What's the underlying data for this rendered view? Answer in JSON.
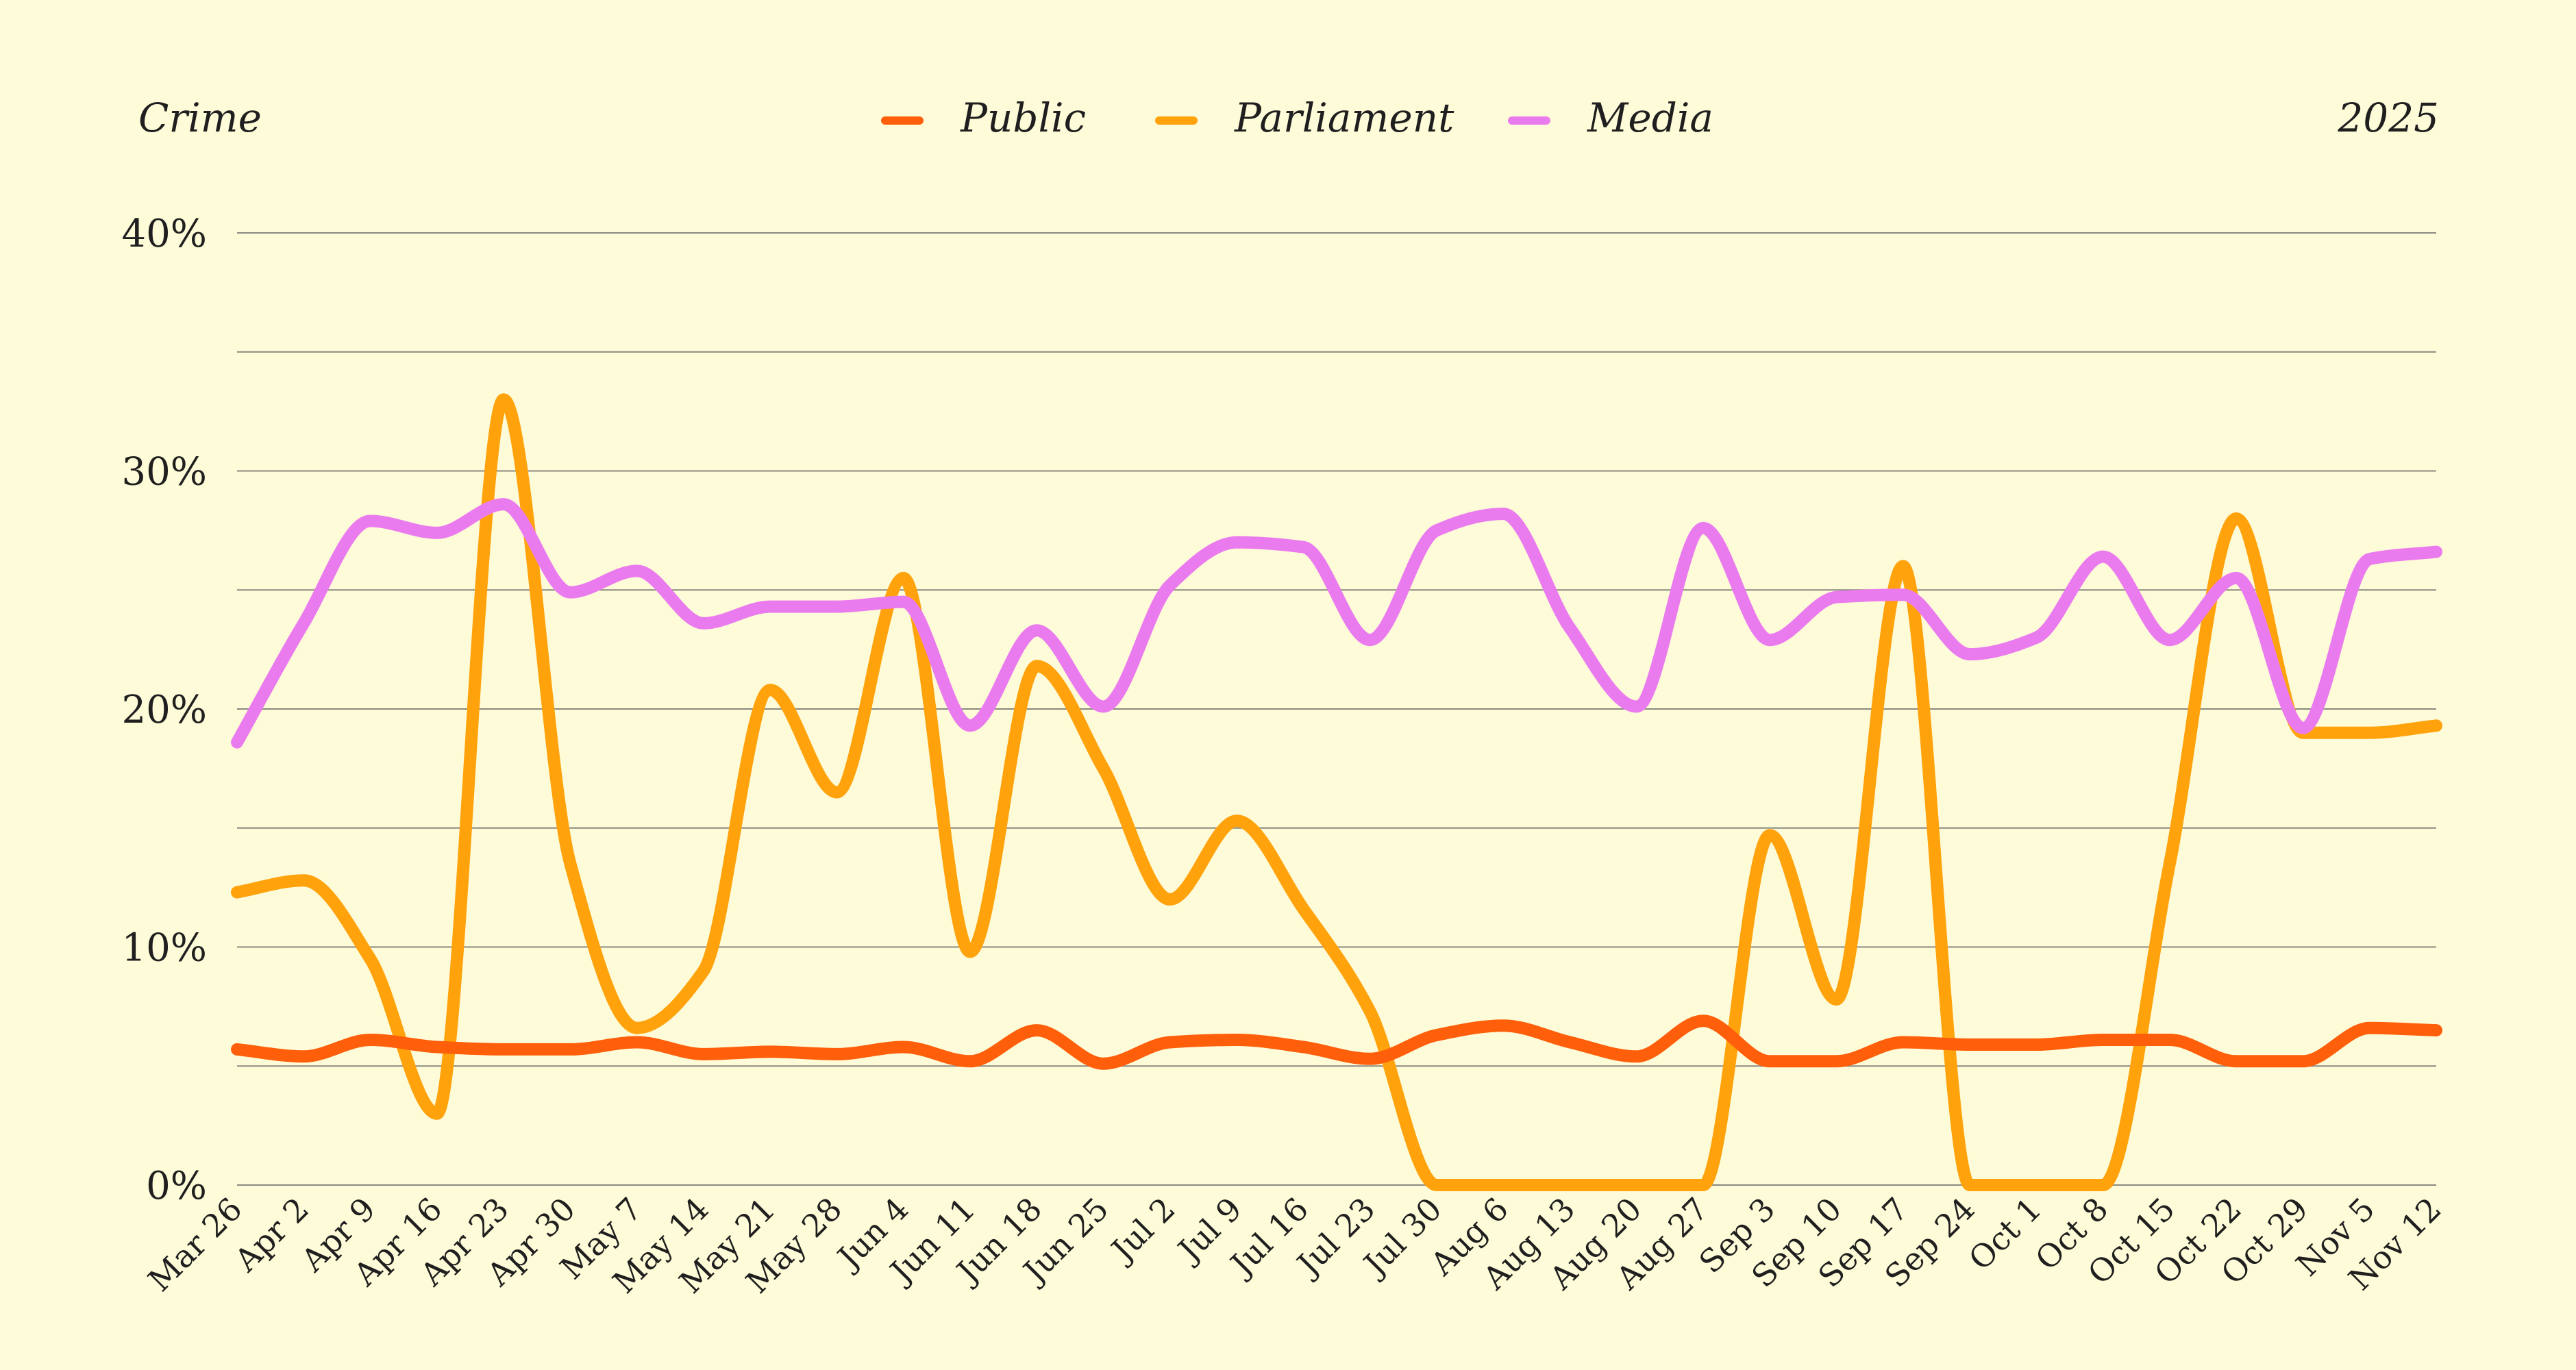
{
  "chart_data": {
    "type": "line",
    "title": "Crime",
    "year_label": "2025",
    "xlabel": "",
    "ylabel": "",
    "ylim": [
      0,
      40
    ],
    "yticks": [
      0,
      10,
      20,
      30,
      40
    ],
    "ytick_labels": [
      "0%",
      "10%",
      "20%",
      "30%",
      "40%"
    ],
    "grid": true,
    "legend_position": "top-center",
    "categories": [
      "Mar 26",
      "Apr 2",
      "Apr 9",
      "Apr 16",
      "Apr 23",
      "Apr 30",
      "May 7",
      "May 14",
      "May 21",
      "May 28",
      "Jun 4",
      "Jun 11",
      "Jun 18",
      "Jun 25",
      "Jul 2",
      "Jul 9",
      "Jul 16",
      "Jul 23",
      "Jul 30",
      "Aug 6",
      "Aug 13",
      "Aug 20",
      "Aug 27",
      "Sep 3",
      "Sep 10",
      "Sep 17",
      "Sep 24",
      "Oct 1",
      "Oct 8",
      "Oct 15",
      "Oct 22",
      "Oct 29",
      "Nov 5",
      "Nov 12"
    ],
    "series": [
      {
        "name": "Public",
        "color": "#ff5f0a",
        "values": [
          5.7,
          5.4,
          6.1,
          5.8,
          5.7,
          5.7,
          6.0,
          5.5,
          5.6,
          5.5,
          5.8,
          5.2,
          6.5,
          5.1,
          6.0,
          6.1,
          5.8,
          5.3,
          6.3,
          6.7,
          6.0,
          5.4,
          6.9,
          5.2,
          5.2,
          6.0,
          5.9,
          5.9,
          6.1,
          6.1,
          5.2,
          5.2,
          6.6,
          6.5
        ]
      },
      {
        "name": "Parliament",
        "color": "#ffa20c",
        "values": [
          12.3,
          12.8,
          9.5,
          3.0,
          33.0,
          13.5,
          6.6,
          9.0,
          20.8,
          16.5,
          25.5,
          9.8,
          21.8,
          17.5,
          12.0,
          15.3,
          11.6,
          7.3,
          0.0,
          0.0,
          0.0,
          0.0,
          0.0,
          14.7,
          7.8,
          26.0,
          0.0,
          0.0,
          0.0,
          13.5,
          28.0,
          19.0,
          19.0,
          19.3
        ]
      },
      {
        "name": "Media",
        "color": "#ea7bef",
        "values": [
          18.6,
          23.6,
          27.9,
          27.4,
          28.6,
          24.9,
          25.8,
          23.6,
          24.3,
          24.3,
          24.5,
          19.3,
          23.3,
          20.1,
          25.2,
          27.0,
          26.8,
          22.9,
          27.5,
          28.2,
          23.4,
          20.1,
          27.6,
          22.9,
          24.7,
          24.8,
          22.3,
          23.0,
          26.4,
          22.9,
          25.5,
          19.2,
          26.3,
          26.6
        ]
      }
    ]
  }
}
